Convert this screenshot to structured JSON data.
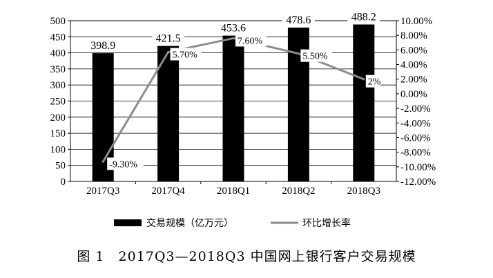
{
  "figure": {
    "caption": "图 1　2017Q3—2018Q3 中国网上银行客户交易规模"
  },
  "chart_data": {
    "type": "bar",
    "categories": [
      "2017Q3",
      "2017Q4",
      "2018Q1",
      "2018Q2",
      "2018Q3"
    ],
    "series": [
      {
        "name": "交易规模（亿万元）",
        "type": "bar",
        "axis": "left",
        "values": [
          398.9,
          421.5,
          453.6,
          478.6,
          488.2
        ],
        "labels": [
          "398.9",
          "421.5",
          "453.6",
          "478.6",
          "488.2"
        ],
        "color": "#000000"
      },
      {
        "name": "环比增长率",
        "type": "line",
        "axis": "right",
        "values": [
          -9.3,
          5.7,
          7.6,
          5.5,
          2
        ],
        "labels": [
          "-9.30%",
          "5.70%",
          "7.60%",
          "5.50%",
          "2%"
        ],
        "color": "#8c8c8c"
      }
    ],
    "y_left": {
      "min": 0,
      "max": 500,
      "ticks": [
        "0",
        "50",
        "100",
        "150",
        "200",
        "250",
        "300",
        "350",
        "400",
        "450",
        "500"
      ]
    },
    "y_right": {
      "min": -12,
      "max": 10,
      "ticks": [
        "-12.00%",
        "-10.00%",
        "-8.00%",
        "-6.00%",
        "-4.00%",
        "-2.00%",
        "0.00%",
        "2.00%",
        "4.00%",
        "6.00%",
        "8.00%",
        "10.00%"
      ]
    },
    "grid": true,
    "legend_position": "bottom",
    "colors": {
      "bar": "#000000",
      "line": "#8c8c8c",
      "grid": "#000000"
    }
  }
}
